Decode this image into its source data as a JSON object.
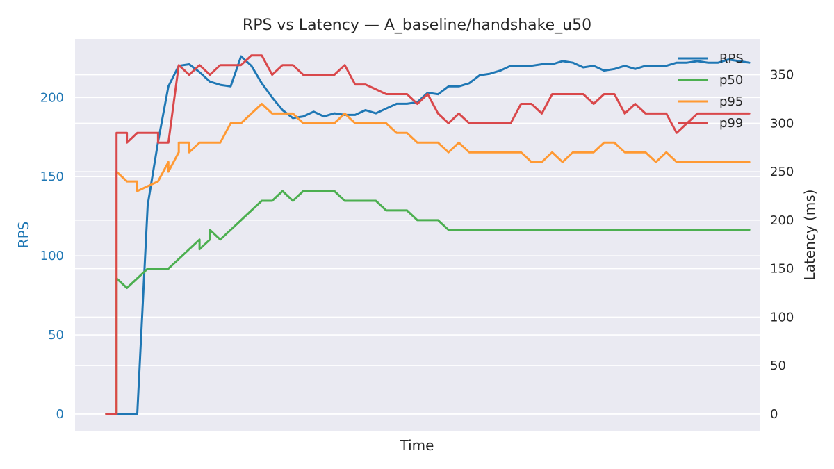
{
  "chart_data": {
    "type": "line",
    "title": "RPS vs Latency — A_baseline/handshake_u50",
    "xlabel": "Time",
    "ylabel_left": "RPS",
    "ylabel_right": "Latency (ms)",
    "xlim": [
      0,
      66
    ],
    "ylim_left": [
      -11,
      237
    ],
    "ylim_right": [
      -18,
      387
    ],
    "yticks_left": [
      {
        "value": 0,
        "label": "0"
      },
      {
        "value": 50,
        "label": "50"
      },
      {
        "value": 100,
        "label": "100"
      },
      {
        "value": 150,
        "label": "150"
      },
      {
        "value": 200,
        "label": "200"
      }
    ],
    "yticks_right": [
      {
        "value": 0,
        "label": "0"
      },
      {
        "value": 50,
        "label": "50"
      },
      {
        "value": 100,
        "label": "100"
      },
      {
        "value": 150,
        "label": "150"
      },
      {
        "value": 200,
        "label": "200"
      },
      {
        "value": 250,
        "label": "250"
      },
      {
        "value": 300,
        "label": "300"
      },
      {
        "value": 350,
        "label": "350"
      }
    ],
    "grid": true,
    "legend_position": "top-right",
    "colors": {
      "background": "#eaeaf2",
      "grid": "#ffffff",
      "left_axis": "#1f77b4",
      "text": "#262626"
    },
    "series": [
      {
        "name": "RPS",
        "axis": "left",
        "color": "#1f77b4",
        "x": [
          3,
          4,
          5,
          6,
          7,
          8,
          9,
          10,
          11,
          12,
          13,
          14,
          15,
          16,
          17,
          18,
          19,
          20,
          21,
          22,
          23,
          24,
          25,
          26,
          27,
          28,
          29,
          30,
          31,
          32,
          33,
          34,
          35,
          36,
          37,
          38,
          39,
          40,
          41,
          42,
          43,
          44,
          45,
          46,
          47,
          48,
          49,
          50,
          51,
          52,
          53,
          54,
          55,
          56,
          57,
          58,
          59,
          60,
          61,
          62,
          63,
          64,
          65
        ],
        "y": [
          0,
          0,
          0,
          0,
          132,
          172,
          207,
          220,
          221,
          216,
          210,
          208,
          207,
          226,
          220,
          209,
          200,
          192,
          187,
          188,
          191,
          188,
          190,
          189,
          189,
          192,
          190,
          193,
          196,
          196,
          197,
          203,
          202,
          207,
          207,
          209,
          214,
          215,
          217,
          220,
          220,
          220,
          221,
          221,
          223,
          222,
          219,
          220,
          217,
          218,
          220,
          218,
          220,
          220,
          220,
          222,
          222,
          223,
          222,
          222,
          224,
          223,
          222
        ]
      },
      {
        "name": "p50",
        "axis": "right",
        "color": "#4caf50",
        "x": [
          3,
          4,
          4,
          5,
          6,
          6,
          7,
          8,
          9,
          10,
          11,
          12,
          12,
          13,
          13,
          14,
          15,
          16,
          17,
          18,
          19,
          20,
          21,
          22,
          23,
          24,
          25,
          26,
          27,
          28,
          29,
          30,
          31,
          32,
          33,
          34,
          35,
          36,
          37,
          38,
          39,
          40,
          41,
          42,
          43,
          44,
          45,
          46,
          47,
          48,
          49,
          50,
          51,
          52,
          53,
          54,
          55,
          56,
          57,
          58,
          59,
          60,
          61,
          62,
          63,
          64,
          65
        ],
        "y": [
          0,
          0,
          140,
          130,
          140,
          140,
          150,
          150,
          150,
          160,
          170,
          180,
          170,
          180,
          190,
          180,
          190,
          200,
          210,
          220,
          220,
          230,
          220,
          230,
          230,
          230,
          230,
          220,
          220,
          220,
          220,
          210,
          210,
          210,
          200,
          200,
          200,
          190,
          190,
          190,
          190,
          190,
          190,
          190,
          190,
          190,
          190,
          190,
          190,
          190,
          190,
          190,
          190,
          190,
          190,
          190,
          190,
          190,
          190,
          190,
          190,
          190,
          190,
          190,
          190,
          190,
          190
        ]
      },
      {
        "name": "p95",
        "axis": "right",
        "color": "#ff9933",
        "x": [
          3,
          4,
          4,
          5,
          6,
          6,
          7,
          8,
          9,
          9,
          10,
          10,
          11,
          11,
          12,
          13,
          14,
          15,
          16,
          17,
          18,
          19,
          20,
          21,
          22,
          23,
          24,
          25,
          26,
          27,
          28,
          29,
          30,
          31,
          32,
          33,
          34,
          35,
          36,
          37,
          38,
          39,
          40,
          41,
          42,
          43,
          44,
          45,
          46,
          47,
          48,
          49,
          50,
          51,
          52,
          53,
          54,
          55,
          56,
          57,
          58,
          59,
          60,
          61,
          62,
          63,
          64,
          65
        ],
        "y": [
          0,
          0,
          250,
          240,
          240,
          230,
          235,
          240,
          260,
          250,
          270,
          280,
          280,
          270,
          280,
          280,
          280,
          300,
          300,
          310,
          320,
          310,
          310,
          310,
          300,
          300,
          300,
          300,
          310,
          300,
          300,
          300,
          300,
          290,
          290,
          280,
          280,
          280,
          270,
          280,
          270,
          270,
          270,
          270,
          270,
          270,
          260,
          260,
          270,
          260,
          270,
          270,
          270,
          280,
          280,
          270,
          270,
          270,
          260,
          270,
          260,
          260,
          260,
          260,
          260,
          260,
          260,
          260
        ]
      },
      {
        "name": "p99",
        "axis": "right",
        "color": "#d9484b",
        "x": [
          3,
          4,
          4,
          5,
          5,
          6,
          7,
          8,
          8,
          9,
          10,
          11,
          12,
          13,
          14,
          15,
          16,
          17,
          18,
          19,
          20,
          21,
          22,
          23,
          24,
          25,
          26,
          27,
          28,
          29,
          30,
          31,
          32,
          33,
          34,
          35,
          36,
          37,
          38,
          39,
          40,
          41,
          42,
          43,
          44,
          45,
          46,
          47,
          48,
          49,
          50,
          51,
          52,
          53,
          54,
          55,
          56,
          57,
          58,
          59,
          60,
          61,
          62,
          63,
          64,
          65
        ],
        "y": [
          0,
          0,
          290,
          290,
          280,
          290,
          290,
          290,
          280,
          280,
          360,
          350,
          360,
          350,
          360,
          360,
          360,
          370,
          370,
          350,
          360,
          360,
          350,
          350,
          350,
          350,
          360,
          340,
          340,
          335,
          330,
          330,
          330,
          320,
          330,
          310,
          300,
          310,
          300,
          300,
          300,
          300,
          300,
          320,
          320,
          310,
          330,
          330,
          330,
          330,
          320,
          330,
          330,
          310,
          320,
          310,
          310,
          310,
          290,
          300,
          310,
          310,
          310,
          310,
          310,
          310
        ]
      }
    ]
  }
}
